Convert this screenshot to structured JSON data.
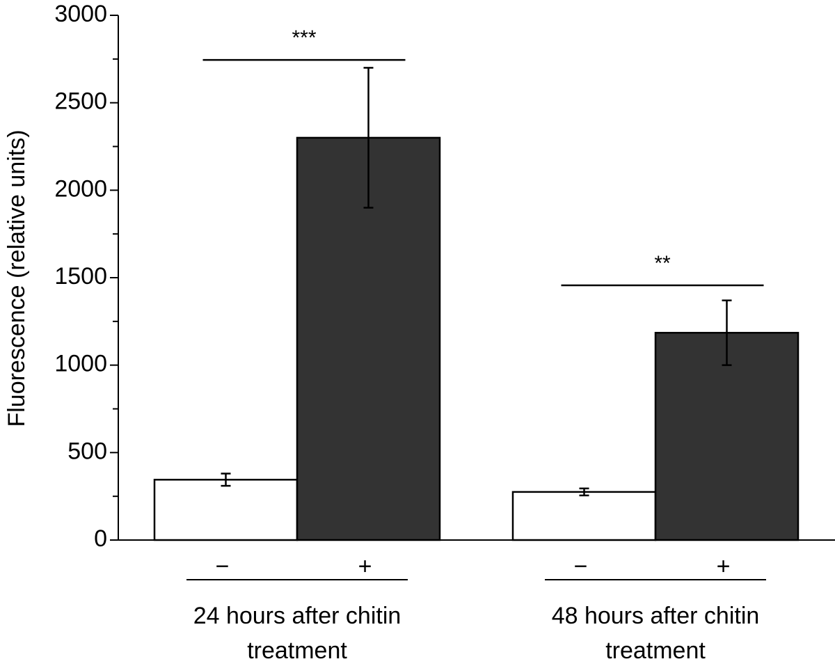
{
  "chart_data": {
    "type": "bar",
    "ylabel": "Fluorescence (relative units)",
    "categories": [
      "−",
      "+",
      "−",
      "+"
    ],
    "values": [
      345,
      2300,
      275,
      1185
    ],
    "errors": [
      35,
      400,
      20,
      185
    ],
    "colors": [
      "#ffffff",
      "#333333",
      "#ffffff",
      "#333333"
    ],
    "groups": [
      {
        "label": "24 hours after chitin treatment",
        "members": [
          0,
          1
        ]
      },
      {
        "label": "48 hours after chitin treatment",
        "members": [
          2,
          3
        ]
      }
    ],
    "annotations": [
      {
        "text": "***",
        "from": 0,
        "to": 1,
        "y": 2745
      },
      {
        "text": "**",
        "from": 2,
        "to": 3,
        "y": 1456
      }
    ],
    "ylim": [
      0,
      3000
    ],
    "yticks": [
      0,
      500,
      1000,
      1500,
      2000,
      2500,
      3000
    ],
    "yminor_ticks": [
      250,
      750,
      1250,
      1750,
      2250,
      2750
    ]
  }
}
